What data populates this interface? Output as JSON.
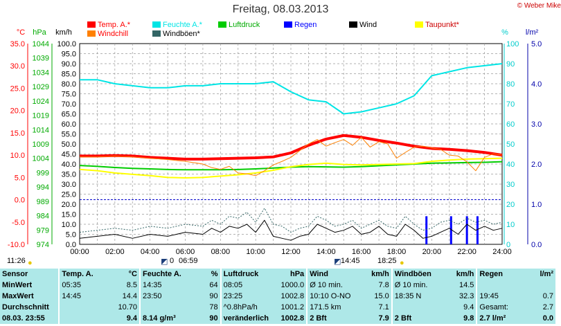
{
  "title": "Freitag, 08.03.2013",
  "copyright": "© Weber Mike",
  "legend": [
    {
      "label": "Temp. A.*",
      "color": "#ff0000"
    },
    {
      "label": "Feuchte A.*",
      "color": "#00e5e5"
    },
    {
      "label": "Luftdruck",
      "color": "#00cc00"
    },
    {
      "label": "Regen",
      "color": "#0000ff"
    },
    {
      "label": "Wind",
      "color": "#000000"
    },
    {
      "label": "Taupunkt*",
      "color": "#ffff00"
    },
    {
      "label": "Windchill",
      "color": "#ff8000"
    },
    {
      "label": "Windböen*",
      "color": "#336666"
    }
  ],
  "axis_units": {
    "temp": "°C",
    "press": "hPa",
    "wind": "km/h",
    "hum": "%",
    "rain": "l/m²"
  },
  "sun": {
    "rise_label": "06:59",
    "set_label": "18:25",
    "left_label": "11:26",
    "max_label": "14:45",
    "mark_label": "0"
  },
  "chart_data": {
    "type": "line",
    "title": "Freitag, 08.03.2013",
    "x_ticks": [
      "00:00",
      "02:00",
      "04:00",
      "06:00",
      "08:00",
      "10:00",
      "12:00",
      "14:00",
      "16:00",
      "18:00",
      "20:00",
      "22:00",
      "24:00"
    ],
    "xlim": [
      0,
      24
    ],
    "axes": {
      "temp_c": {
        "ticks": [
          "35.0",
          "30.0",
          "25.0",
          "20.0",
          "15.0",
          "10.0",
          "5.0",
          "0.0",
          "-5.0",
          "-10.0"
        ],
        "ylim": [
          -10,
          35
        ]
      },
      "pressure_hpa": {
        "ticks": [
          "1044",
          "1039",
          "1034",
          "1029",
          "1024",
          "1019",
          "1014",
          "1009",
          "1004",
          "999",
          "994",
          "989",
          "984",
          "979",
          "974"
        ],
        "ylim": [
          974,
          1044
        ]
      },
      "wind_kmh": {
        "ticks": [
          "100.0",
          "95.0",
          "90.0",
          "85.0",
          "80.0",
          "75.0",
          "70.0",
          "65.0",
          "60.0",
          "55.0",
          "50.0",
          "45.0",
          "40.0",
          "35.0",
          "30.0",
          "25.0",
          "20.0",
          "15.0",
          "10.0",
          "5.0",
          "0.0"
        ],
        "ylim": [
          0,
          100
        ]
      },
      "humidity_pct": {
        "ticks": [
          "100",
          "90",
          "80",
          "70",
          "60",
          "50",
          "40",
          "30",
          "20",
          "10",
          "0"
        ],
        "ylim": [
          0,
          100
        ]
      },
      "rain_lm2": {
        "ticks": [
          "5.0",
          "4.0",
          "3.0",
          "2.0",
          "1.0",
          "0.0"
        ],
        "ylim": [
          0,
          5
        ]
      }
    },
    "series": [
      {
        "name": "Temp. A.*",
        "axis": "temp_c",
        "color": "#ff0000",
        "width": 4,
        "x": [
          0,
          1,
          2,
          3,
          4,
          5,
          6,
          7,
          8,
          9,
          10,
          11,
          12,
          13,
          14,
          15,
          16,
          17,
          18,
          19,
          20,
          21,
          22,
          23,
          24
        ],
        "y": [
          9.8,
          9.8,
          9.9,
          9.8,
          9.5,
          9.3,
          9.1,
          9.1,
          9.2,
          9.3,
          9.4,
          9.6,
          10.5,
          12.2,
          13.6,
          14.4,
          14.0,
          13.3,
          12.7,
          12.0,
          11.5,
          11.3,
          11.0,
          10.6,
          10.0
        ]
      },
      {
        "name": "Feuchte A.*",
        "axis": "humidity_pct",
        "color": "#00e5e5",
        "width": 2,
        "x": [
          0,
          1,
          2,
          3,
          4,
          5,
          6,
          7,
          8,
          9,
          10,
          11,
          12,
          13,
          14,
          15,
          16,
          17,
          18,
          19,
          20,
          21,
          22,
          23,
          24
        ],
        "y": [
          82,
          82,
          80,
          79,
          78,
          78,
          79,
          79,
          80,
          80,
          80,
          81,
          76,
          72,
          71,
          65,
          66,
          68,
          70,
          74,
          84,
          86,
          88,
          89,
          90
        ]
      },
      {
        "name": "Luftdruck",
        "axis": "pressure_hpa",
        "color": "#00cc00",
        "width": 2,
        "x": [
          0,
          1,
          2,
          3,
          4,
          5,
          6,
          7,
          8,
          9,
          10,
          11,
          12,
          13,
          14,
          15,
          16,
          17,
          18,
          19,
          20,
          21,
          22,
          23,
          24
        ],
        "y": [
          1001.5,
          1001.2,
          1000.8,
          1000.5,
          1000.3,
          1000.1,
          1000.0,
          1000.0,
          1000.0,
          1000.1,
          1000.3,
          1000.6,
          1000.9,
          1001.1,
          1001.0,
          1000.9,
          1001.1,
          1001.4,
          1001.7,
          1002.0,
          1002.3,
          1002.4,
          1002.5,
          1002.6,
          1002.8
        ]
      },
      {
        "name": "Taupunkt*",
        "axis": "temp_c",
        "color": "#ffff00",
        "width": 2,
        "x": [
          0,
          1,
          2,
          3,
          4,
          5,
          6,
          7,
          8,
          9,
          10,
          11,
          12,
          13,
          14,
          15,
          16,
          17,
          18,
          19,
          20,
          21,
          22,
          23,
          24
        ],
        "y": [
          6.8,
          6.5,
          6.0,
          5.7,
          5.4,
          5.0,
          4.9,
          5.0,
          5.3,
          5.6,
          6.0,
          6.6,
          7.4,
          7.9,
          8.2,
          7.9,
          7.8,
          7.9,
          8.0,
          8.1,
          8.6,
          8.9,
          9.1,
          9.2,
          9.3
        ]
      },
      {
        "name": "Windchill",
        "axis": "temp_c",
        "color": "#ff8000",
        "width": 1,
        "x": [
          0,
          1,
          2,
          3,
          4,
          5,
          6,
          7,
          7.5,
          8,
          8.5,
          9,
          9.5,
          10,
          10.5,
          11,
          11.5,
          12,
          12.5,
          13,
          13.5,
          14,
          14.5,
          15,
          15.5,
          16,
          16.5,
          17,
          17.5,
          18,
          18.5,
          19,
          19.5,
          20,
          20.5,
          21,
          21.5,
          22,
          22.5,
          23,
          23.5,
          24
        ],
        "y": [
          9.6,
          9.6,
          9.8,
          9.6,
          9.3,
          9.0,
          8.6,
          8.0,
          7.2,
          6.8,
          7.5,
          6.0,
          5.8,
          5.4,
          6.5,
          7.8,
          8.6,
          9.5,
          11.0,
          12.5,
          13.5,
          12.0,
          12.8,
          13.5,
          12.2,
          14.0,
          11.8,
          13.0,
          12.5,
          9.3,
          10.6,
          11.8,
          12.0,
          11.6,
          11.3,
          10.0,
          9.8,
          8.5,
          6.5,
          9.5,
          10.3,
          10.0
        ]
      },
      {
        "name": "Windböen*",
        "axis": "wind_kmh",
        "color": "#336666",
        "width": 1,
        "dash": "2,2",
        "x": [
          0,
          1,
          2,
          3,
          4,
          5,
          6,
          7,
          7.5,
          8,
          8.5,
          9,
          9.5,
          10,
          10.5,
          11,
          11.5,
          12,
          12.5,
          13,
          13.5,
          14,
          14.5,
          15,
          15.5,
          16,
          16.5,
          17,
          17.5,
          18,
          18.5,
          19,
          19.5,
          20,
          20.5,
          21,
          21.5,
          22,
          22.5,
          23,
          23.5,
          24
        ],
        "y": [
          6,
          7,
          8,
          7,
          9,
          8,
          10,
          9,
          12,
          10,
          14,
          13,
          16,
          11,
          18,
          10,
          9,
          6,
          8,
          9,
          14,
          12,
          9,
          10,
          12,
          8,
          10,
          12,
          9,
          8,
          14,
          10,
          7,
          8,
          11,
          12,
          10,
          13,
          11,
          12,
          10,
          11
        ]
      },
      {
        "name": "Wind",
        "axis": "wind_kmh",
        "color": "#000000",
        "width": 1,
        "x": [
          0,
          1,
          2,
          3,
          4,
          5,
          6,
          7,
          7.5,
          8,
          8.5,
          9,
          9.5,
          10,
          10.5,
          11,
          11.5,
          12,
          12.5,
          13,
          13.5,
          14,
          14.5,
          15,
          15.5,
          16,
          16.5,
          17,
          17.5,
          18,
          18.5,
          19,
          19.5,
          20,
          20.5,
          21,
          21.5,
          22,
          22.5,
          23,
          23.5,
          24
        ],
        "y": [
          3,
          4,
          5,
          3,
          5,
          4,
          6,
          5,
          8,
          6,
          9,
          8,
          10,
          6,
          12,
          4,
          3,
          2,
          4,
          5,
          10,
          8,
          6,
          7,
          9,
          5,
          6,
          9,
          5,
          4,
          10,
          7,
          3,
          4,
          6,
          8,
          5,
          10,
          7,
          9,
          7,
          8
        ]
      }
    ],
    "rain_bars": {
      "axis": "rain_lm2",
      "color": "#0000ff",
      "x": [
        19.7,
        21.1,
        22.0,
        22.6
      ],
      "values": [
        0.7,
        0.7,
        0.7,
        0.7
      ]
    }
  },
  "stats": {
    "header": [
      "Sensor",
      "Temp. A.",
      "°C",
      "Feuchte A.",
      "%",
      "Luftdruck",
      "hPa",
      "Wind",
      "km/h",
      "Windböen",
      "km/h",
      "Regen",
      "l/m²"
    ],
    "rows": [
      [
        "MinWert",
        "05:35",
        "8.5",
        "14:35",
        "64",
        "08:05",
        "1000.0",
        "Ø 10 min.",
        "7.8",
        "Ø 10 min.",
        "14.5",
        "",
        ""
      ],
      [
        "MaxWert",
        "14:45",
        "14.4",
        "23:50",
        "90",
        "23:25",
        "1002.8",
        "10:10   O-NO",
        "15.0",
        "18:35   N",
        "32.3",
        "19:45",
        "0.7"
      ],
      [
        "Durchschnitt",
        "",
        "10.70",
        "",
        "78",
        "^0.8hPa/h",
        "1001.2",
        "171.5 km",
        "7.1",
        "",
        "9.4",
        "Gesamt:",
        "2.7"
      ],
      [
        "08.03.  23:55",
        "",
        "9.4",
        "8.14 g/m³",
        "90",
        "veränderlich",
        "1002.8",
        "2 Bft",
        "7.9",
        "2 Bft",
        "9.8",
        "2.7 l/m²",
        "0.0"
      ]
    ]
  }
}
